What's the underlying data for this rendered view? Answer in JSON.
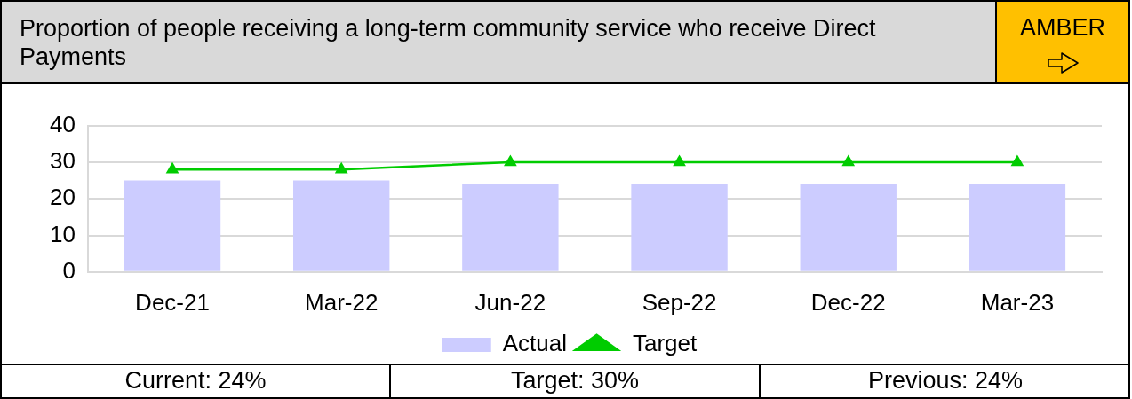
{
  "chart_data": {
    "type": "bar",
    "title": "Proportion of people receiving a long-term community service who receive Direct Payments",
    "annotations": [
      "AMBER",
      "Current: 24%",
      "Target: 30%",
      "Previous: 24%"
    ],
    "categories": [
      "Dec-21",
      "Mar-22",
      "Jun-22",
      "Sep-22",
      "Dec-22",
      "Mar-23"
    ],
    "series": [
      {
        "name": "Actual",
        "color": "#ccccff",
        "values": [
          25,
          25,
          24,
          24,
          24,
          24
        ]
      },
      {
        "name": "Target",
        "type": "line",
        "color": "#00cc00",
        "values": [
          28,
          28,
          30,
          30,
          30,
          30
        ]
      }
    ],
    "ylim": [
      0,
      40
    ],
    "yticks": [
      0,
      10,
      20,
      30,
      40
    ],
    "grid": "y",
    "legend": "bottom",
    "marker": "triangle"
  }
}
